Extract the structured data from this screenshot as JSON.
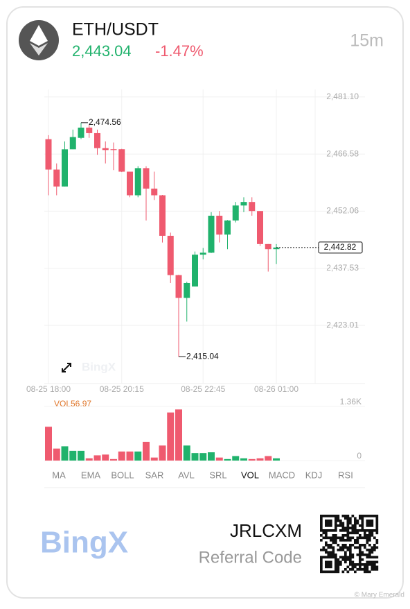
{
  "header": {
    "pair": "ETH/USDT",
    "price": "2,443.04",
    "change": "-1.47%",
    "interval": "15m"
  },
  "chart_data": [
    {
      "type": "candlestick",
      "categories": [
        "08-25 18:00",
        null,
        null,
        null,
        null,
        null,
        null,
        null,
        null,
        "08-25 20:15",
        null,
        null,
        null,
        null,
        null,
        null,
        null,
        null,
        null,
        "08-25 22:45",
        null,
        null,
        null,
        null,
        null,
        null,
        null,
        null,
        "08-26 01:00"
      ],
      "open": [
        2470.36,
        2462.63,
        2458.33,
        2467.78,
        2470.7,
        2473.3,
        2471.9,
        2468.1,
        2467.8,
        2467.8,
        2462.1,
        2456.1,
        2463.0,
        2457.8,
        2456.1,
        2445.8,
        2435.8,
        2430.0,
        2432.9,
        2441.0,
        2441.5,
        2450.9,
        2446.1,
        2449.7,
        2453.5,
        2454.4,
        2452.1,
        2443.7,
        2442.4
      ],
      "high": [
        2471.39,
        2464.2,
        2469.8,
        2472.8,
        2474.56,
        2474.1,
        2472.8,
        2469.8,
        2469.5,
        2467.9,
        2462.1,
        2463.5,
        2463.5,
        2462.1,
        2456.2,
        2446.6,
        2435.9,
        2434.1,
        2441.8,
        2442.7,
        2451.8,
        2452.1,
        2449.8,
        2454.4,
        2455.6,
        2455.6,
        2452.1,
        2443.7,
        2443.7
      ],
      "low": [
        2456.1,
        2456.1,
        2458.3,
        2467.8,
        2470.4,
        2470.7,
        2466.4,
        2464.2,
        2462.5,
        2462.0,
        2455.6,
        2455.6,
        2449.7,
        2454.9,
        2444.1,
        2433.8,
        2415.04,
        2424.0,
        2432.9,
        2439.8,
        2441.4,
        2444.1,
        2442.4,
        2449.2,
        2451.8,
        2450.9,
        2443.2,
        2436.7,
        2438.6
      ],
      "close": [
        2462.63,
        2458.33,
        2467.78,
        2470.9,
        2473.3,
        2471.9,
        2468.1,
        2467.6,
        2467.6,
        2462.1,
        2456.1,
        2463.0,
        2457.8,
        2456.1,
        2445.8,
        2435.8,
        2430.0,
        2433.8,
        2441.0,
        2441.5,
        2450.9,
        2446.1,
        2449.7,
        2453.5,
        2454.4,
        2452.1,
        2443.7,
        2442.4,
        2442.82
      ],
      "up_color": "#20b26c",
      "down_color": "#ef5a6f",
      "ylim": [
        2408.4,
        2483.0
      ],
      "yticks": [
        {
          "value": 2481.1,
          "label": "2,481.10"
        },
        {
          "value": 2466.58,
          "label": "2,466.58"
        },
        {
          "value": 2452.06,
          "label": "2,452.06"
        },
        {
          "value": 2437.53,
          "label": "2,437.53"
        },
        {
          "value": 2423.01,
          "label": "2,423.01"
        }
      ],
      "annotations": [
        {
          "value": 2474.56,
          "label": "2,474.56"
        },
        {
          "value": 2415.04,
          "label": "2,415.04"
        }
      ],
      "last_price": {
        "value": 2442.82,
        "label": "2,442.82"
      },
      "watermark": "BingX",
      "grid": true
    },
    {
      "type": "bar",
      "title": "VOL56.97",
      "values": [
        850,
        302,
        359,
        246,
        246,
        57,
        132,
        151,
        38,
        227,
        227,
        227,
        472,
        76,
        378,
        1209,
        1285,
        378,
        189,
        189,
        208,
        76,
        38,
        113,
        57,
        38,
        57,
        113,
        56.97
      ],
      "ylim": [
        0,
        1360
      ],
      "yticks": [
        {
          "value": 1360,
          "label": "1.36K"
        },
        0
      ]
    }
  ],
  "indicators": [
    "MA",
    "EMA",
    "BOLL",
    "SAR",
    "AVL",
    "SRL",
    "VOL",
    "MACD",
    "KDJ",
    "RSI"
  ],
  "active_indicator_index": 6,
  "footer": {
    "code": "JRLCXM",
    "code_label": "Referral Code",
    "brand": "BingX",
    "watermark": "© Mary Emerald"
  }
}
